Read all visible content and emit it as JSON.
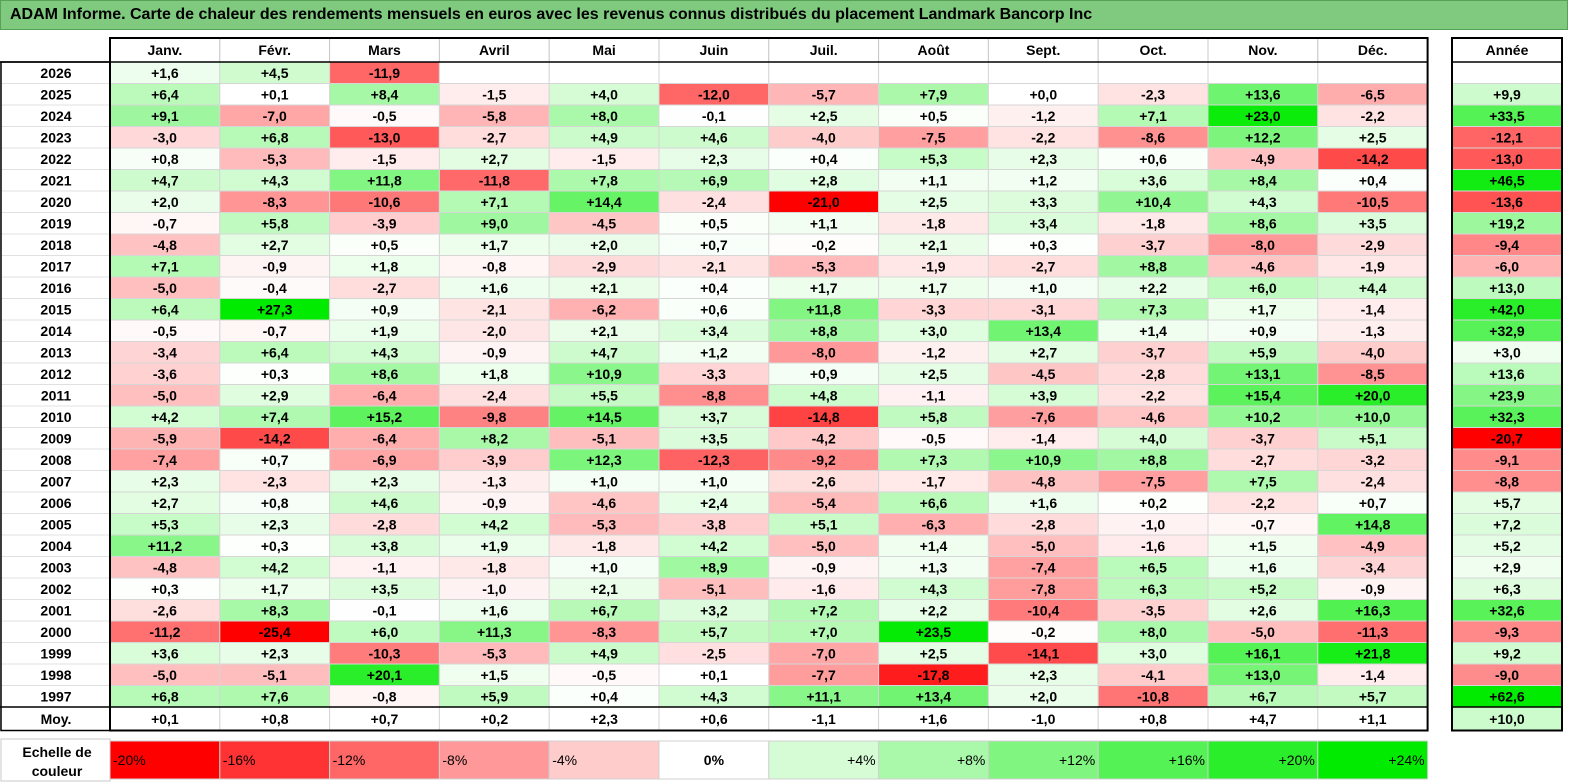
{
  "title": "ADAM Informe. Carte de chaleur des rendements mensuels en euros avec les revenus connus distribués du placement Landmark Bancorp Inc",
  "chart_data": {
    "type": "heatmap",
    "title": "ADAM Informe. Carte de chaleur des rendements mensuels en euros avec les revenus connus distribués du placement Landmark Bancorp Inc",
    "months": [
      "Janv.",
      "Févr.",
      "Mars",
      "Avril",
      "Mai",
      "Juin",
      "Juil.",
      "Août",
      "Sept.",
      "Oct.",
      "Nov.",
      "Déc."
    ],
    "year_header": "Année",
    "rows": [
      {
        "year": "2026",
        "values": [
          "+1,6",
          "+4,5",
          "-11,9",
          "",
          "",
          "",
          "",
          "",
          "",
          "",
          "",
          ""
        ],
        "annual": ""
      },
      {
        "year": "2025",
        "values": [
          "+6,4",
          "+0,1",
          "+8,4",
          "-1,5",
          "+4,0",
          "-12,0",
          "-5,7",
          "+7,9",
          "+0,0",
          "-2,3",
          "+13,6",
          "-6,5"
        ],
        "annual": "+9,9"
      },
      {
        "year": "2024",
        "values": [
          "+9,1",
          "-7,0",
          "-0,5",
          "-5,8",
          "+8,0",
          "-0,1",
          "+2,5",
          "+0,5",
          "-1,2",
          "+7,1",
          "+23,0",
          "-2,2"
        ],
        "annual": "+33,5"
      },
      {
        "year": "2023",
        "values": [
          "-3,0",
          "+6,8",
          "-13,0",
          "-2,7",
          "+4,9",
          "+4,6",
          "-4,0",
          "-7,5",
          "-2,2",
          "-8,6",
          "+12,2",
          "+2,5"
        ],
        "annual": "-12,1"
      },
      {
        "year": "2022",
        "values": [
          "+0,8",
          "-5,3",
          "-1,5",
          "+2,7",
          "-1,5",
          "+2,3",
          "+0,4",
          "+5,3",
          "+2,3",
          "+0,6",
          "-4,9",
          "-14,2"
        ],
        "annual": "-13,0"
      },
      {
        "year": "2021",
        "values": [
          "+4,7",
          "+4,3",
          "+11,8",
          "-11,8",
          "+7,8",
          "+6,9",
          "+2,8",
          "+1,1",
          "+1,2",
          "+3,6",
          "+8,4",
          "+0,4"
        ],
        "annual": "+46,5"
      },
      {
        "year": "2020",
        "values": [
          "+2,0",
          "-8,3",
          "-10,6",
          "+7,1",
          "+14,4",
          "-2,4",
          "-21,0",
          "+2,5",
          "+3,3",
          "+10,4",
          "+4,3",
          "-10,5"
        ],
        "annual": "-13,6"
      },
      {
        "year": "2019",
        "values": [
          "-0,7",
          "+5,8",
          "-3,9",
          "+9,0",
          "-4,5",
          "+0,5",
          "+1,1",
          "-1,8",
          "+3,4",
          "-1,8",
          "+8,6",
          "+3,5"
        ],
        "annual": "+19,2"
      },
      {
        "year": "2018",
        "values": [
          "-4,8",
          "+2,7",
          "+0,5",
          "+1,7",
          "+2,0",
          "+0,7",
          "-0,2",
          "+2,1",
          "+0,3",
          "-3,7",
          "-8,0",
          "-2,9"
        ],
        "annual": "-9,4"
      },
      {
        "year": "2017",
        "values": [
          "+7,1",
          "-0,9",
          "+1,8",
          "-0,8",
          "-2,9",
          "-2,1",
          "-5,3",
          "-1,9",
          "-2,7",
          "+8,8",
          "-4,6",
          "-1,9"
        ],
        "annual": "-6,0"
      },
      {
        "year": "2016",
        "values": [
          "-5,0",
          "-0,4",
          "-2,7",
          "+1,6",
          "+2,1",
          "+0,4",
          "+1,7",
          "+1,7",
          "+1,0",
          "+2,2",
          "+6,0",
          "+4,4"
        ],
        "annual": "+13,0"
      },
      {
        "year": "2015",
        "values": [
          "+6,4",
          "+27,3",
          "+0,9",
          "-2,1",
          "-6,2",
          "+0,6",
          "+11,8",
          "-3,3",
          "-3,1",
          "+7,3",
          "+1,7",
          "-1,4"
        ],
        "annual": "+42,0"
      },
      {
        "year": "2014",
        "values": [
          "-0,5",
          "-0,7",
          "+1,9",
          "-2,0",
          "+2,1",
          "+3,4",
          "+8,8",
          "+3,0",
          "+13,4",
          "+1,4",
          "+0,9",
          "-1,3"
        ],
        "annual": "+32,9"
      },
      {
        "year": "2013",
        "values": [
          "-3,4",
          "+6,4",
          "+4,3",
          "-0,9",
          "+4,7",
          "+1,2",
          "-8,0",
          "-1,2",
          "+2,7",
          "-3,7",
          "+5,9",
          "-4,0"
        ],
        "annual": "+3,0"
      },
      {
        "year": "2012",
        "values": [
          "-3,6",
          "+0,3",
          "+8,6",
          "+1,8",
          "+10,9",
          "-3,3",
          "+0,9",
          "+2,5",
          "-4,5",
          "-2,8",
          "+13,1",
          "-8,5"
        ],
        "annual": "+13,6"
      },
      {
        "year": "2011",
        "values": [
          "-5,0",
          "+2,9",
          "-6,4",
          "-2,4",
          "+5,5",
          "-8,8",
          "+4,8",
          "-1,1",
          "+3,9",
          "-2,2",
          "+15,4",
          "+20,0"
        ],
        "annual": "+23,9"
      },
      {
        "year": "2010",
        "values": [
          "+4,2",
          "+7,4",
          "+15,2",
          "-9,8",
          "+14,5",
          "+3,7",
          "-14,8",
          "+5,8",
          "-7,6",
          "-4,6",
          "+10,2",
          "+10,0"
        ],
        "annual": "+32,3"
      },
      {
        "year": "2009",
        "values": [
          "-5,9",
          "-14,2",
          "-6,4",
          "+8,2",
          "-5,1",
          "+3,5",
          "-4,2",
          "-0,5",
          "-1,4",
          "+4,0",
          "-3,7",
          "+5,1"
        ],
        "annual": "-20,7"
      },
      {
        "year": "2008",
        "values": [
          "-7,4",
          "+0,7",
          "-6,9",
          "-3,9",
          "+12,3",
          "-12,3",
          "-9,2",
          "+7,3",
          "+10,9",
          "+8,8",
          "-2,7",
          "-3,2"
        ],
        "annual": "-9,1"
      },
      {
        "year": "2007",
        "values": [
          "+2,3",
          "-2,3",
          "+2,3",
          "-1,3",
          "+1,0",
          "+1,0",
          "-2,6",
          "-1,7",
          "-4,8",
          "-7,5",
          "+7,5",
          "-2,4"
        ],
        "annual": "-8,8"
      },
      {
        "year": "2006",
        "values": [
          "+2,7",
          "+0,8",
          "+4,6",
          "-0,9",
          "-4,6",
          "+2,4",
          "-5,4",
          "+6,6",
          "+1,6",
          "+0,2",
          "-2,2",
          "+0,7"
        ],
        "annual": "+5,7"
      },
      {
        "year": "2005",
        "values": [
          "+5,3",
          "+2,3",
          "-2,8",
          "+4,2",
          "-5,3",
          "-3,8",
          "+5,1",
          "-6,3",
          "-2,8",
          "-1,0",
          "-0,7",
          "+14,8"
        ],
        "annual": "+7,2"
      },
      {
        "year": "2004",
        "values": [
          "+11,2",
          "+0,3",
          "+3,8",
          "+1,9",
          "-1,8",
          "+4,2",
          "-5,0",
          "+1,4",
          "-5,0",
          "-1,6",
          "+1,5",
          "-4,9"
        ],
        "annual": "+5,2"
      },
      {
        "year": "2003",
        "values": [
          "-4,8",
          "+4,2",
          "-1,1",
          "-1,8",
          "+1,0",
          "+8,9",
          "-0,9",
          "+1,3",
          "-7,4",
          "+6,5",
          "+1,6",
          "-3,4"
        ],
        "annual": "+2,9"
      },
      {
        "year": "2002",
        "values": [
          "+0,3",
          "+1,7",
          "+3,5",
          "-1,0",
          "+2,1",
          "-5,1",
          "-1,6",
          "+4,3",
          "-7,8",
          "+6,3",
          "+5,2",
          "-0,9"
        ],
        "annual": "+6,3"
      },
      {
        "year": "2001",
        "values": [
          "-2,6",
          "+8,3",
          "-0,1",
          "+1,6",
          "+6,7",
          "+3,2",
          "+7,2",
          "+2,2",
          "-10,4",
          "-3,5",
          "+2,6",
          "+16,3"
        ],
        "annual": "+32,6"
      },
      {
        "year": "2000",
        "values": [
          "-11,2",
          "-25,4",
          "+6,0",
          "+11,3",
          "-8,3",
          "+5,7",
          "+7,0",
          "+23,5",
          "-0,2",
          "+8,0",
          "-5,0",
          "-11,3"
        ],
        "annual": "-9,3"
      },
      {
        "year": "1999",
        "values": [
          "+3,6",
          "+2,3",
          "-10,3",
          "-5,3",
          "+4,9",
          "-2,5",
          "-7,0",
          "+2,5",
          "-14,1",
          "+3,0",
          "+16,1",
          "+21,8"
        ],
        "annual": "+9,2"
      },
      {
        "year": "1998",
        "values": [
          "-5,0",
          "-5,1",
          "+20,1",
          "+1,5",
          "-0,5",
          "+0,1",
          "-7,7",
          "-17,8",
          "+2,3",
          "-4,1",
          "+13,0",
          "-1,4"
        ],
        "annual": "-9,0"
      },
      {
        "year": "1997",
        "values": [
          "+6,8",
          "+7,6",
          "-0,8",
          "+5,9",
          "+0,4",
          "+4,3",
          "+11,1",
          "+13,4",
          "+2,0",
          "-10,8",
          "+6,7",
          "+5,7"
        ],
        "annual": "+62,6"
      }
    ],
    "average": {
      "label": "Moy.",
      "values": [
        "+0,1",
        "+0,8",
        "+0,7",
        "+0,2",
        "+2,3",
        "+0,6",
        "-1,1",
        "+1,6",
        "-1,0",
        "+0,8",
        "+4,7",
        "+1,1"
      ],
      "annual": "+10,0"
    },
    "scale": {
      "label_line1": "Echelle de",
      "label_line2": "couleur",
      "items": [
        "-20%",
        "-16%",
        "-12%",
        "-8%",
        "-4%",
        "0%",
        "+4%",
        "+8%",
        "+12%",
        "+16%",
        "+20%",
        "+24%"
      ],
      "values": [
        -20,
        -16,
        -12,
        -8,
        -4,
        0,
        4,
        8,
        12,
        16,
        20,
        24
      ]
    },
    "colors": {
      "negative": "#ff0000",
      "positive": "#00e000",
      "neutral": "#ffffff",
      "title_bg": "#7fca7f"
    }
  }
}
